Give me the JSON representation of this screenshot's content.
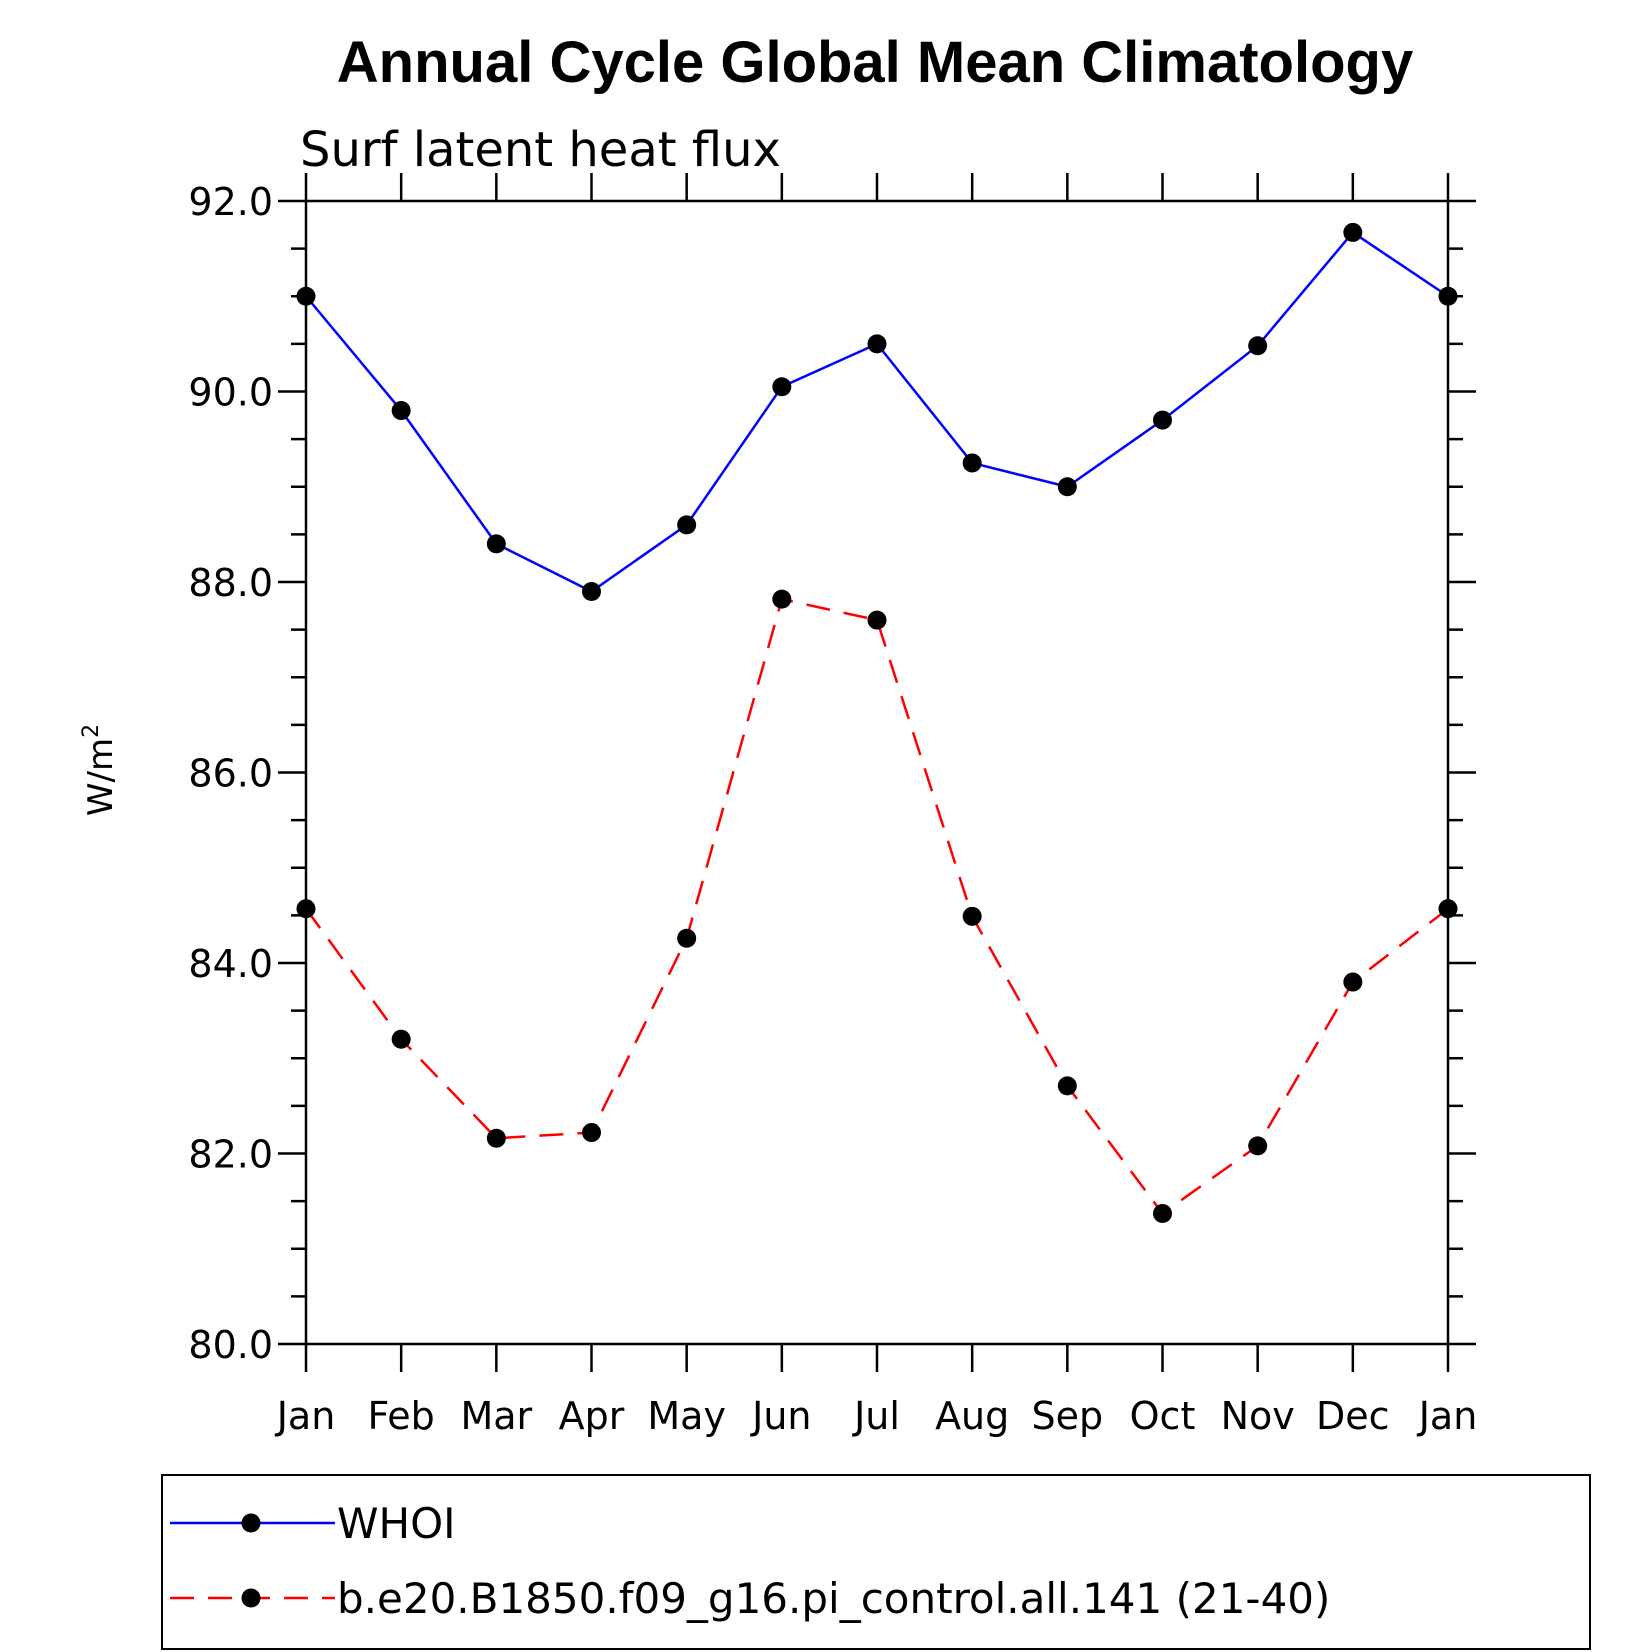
{
  "chart_data": {
    "type": "line",
    "title": "Annual Cycle Global Mean Climatology",
    "subtitle": "Surf latent heat flux",
    "ylabel": "W/m",
    "ylabel_superscript": "2",
    "categories": [
      "Jan",
      "Feb",
      "Mar",
      "Apr",
      "May",
      "Jun",
      "Jul",
      "Aug",
      "Sep",
      "Oct",
      "Nov",
      "Dec",
      "Jan"
    ],
    "ylim": [
      80.0,
      92.0
    ],
    "yticks": [
      "80.0",
      "82.0",
      "84.0",
      "86.0",
      "88.0",
      "90.0",
      "92.0"
    ],
    "series": [
      {
        "name": "WHOI",
        "color": "#0000ff",
        "style": "solid",
        "values": [
          91.0,
          89.8,
          88.4,
          87.9,
          88.6,
          90.05,
          90.5,
          89.25,
          89.0,
          89.7,
          90.48,
          91.67,
          91.0
        ]
      },
      {
        "name": "b.e20.B1850.f09_g16.pi_control.all.141 (21-40)",
        "color": "#ff0000",
        "style": "dashed",
        "values": [
          84.57,
          83.2,
          82.16,
          82.22,
          84.26,
          87.82,
          87.6,
          84.49,
          82.71,
          81.37,
          82.08,
          83.8,
          84.57
        ]
      }
    ]
  }
}
